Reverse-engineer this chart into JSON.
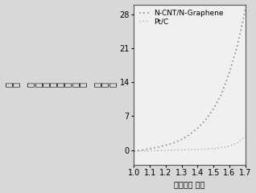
{
  "title": "",
  "xlabel": "电势（伏 特）",
  "ylabel_chars": [
    "电",
    "流",
    " ",
    "密",
    "度",
    "（",
    "毫",
    "安",
    "／",
    "平",
    "方",
    " ",
    "厘",
    "米",
    "）"
  ],
  "xlim": [
    1.0,
    1.7
  ],
  "ylim": [
    -3,
    30
  ],
  "yticks": [
    0,
    7,
    14,
    21,
    28
  ],
  "xticks": [
    1.0,
    1.1,
    1.2,
    1.3,
    1.4,
    1.5,
    1.6,
    1.7
  ],
  "line1_label": "N-CNT/N-Graphene",
  "line2_label": "Pt/C",
  "line1_color": "#888888",
  "line2_color": "#aaaaaa",
  "background_color": "#d8d8d8",
  "plot_background": "#f0f0f0",
  "line1_x": [
    1.0,
    1.05,
    1.1,
    1.15,
    1.2,
    1.25,
    1.3,
    1.35,
    1.4,
    1.45,
    1.5,
    1.55,
    1.6,
    1.65,
    1.7
  ],
  "line1_y": [
    -0.2,
    0.0,
    0.3,
    0.6,
    1.0,
    1.5,
    2.2,
    3.2,
    4.5,
    6.2,
    8.5,
    11.5,
    16.0,
    21.5,
    29.0
  ],
  "line2_x": [
    1.0,
    1.05,
    1.1,
    1.15,
    1.2,
    1.25,
    1.3,
    1.35,
    1.4,
    1.45,
    1.5,
    1.55,
    1.6,
    1.65,
    1.7
  ],
  "line2_y": [
    -0.3,
    -0.2,
    -0.15,
    -0.1,
    -0.05,
    0.0,
    0.05,
    0.1,
    0.15,
    0.2,
    0.3,
    0.5,
    0.8,
    1.5,
    2.8
  ],
  "font_size": 7,
  "legend_font_size": 6.5,
  "tick_font_size": 7
}
